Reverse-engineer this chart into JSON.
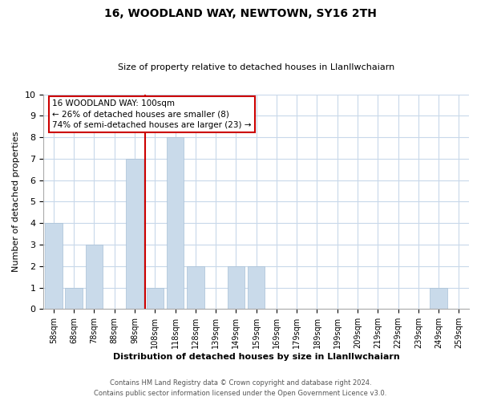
{
  "title": "16, WOODLAND WAY, NEWTOWN, SY16 2TH",
  "subtitle": "Size of property relative to detached houses in Llanllwchaiarn",
  "bar_labels": [
    "58sqm",
    "68sqm",
    "78sqm",
    "88sqm",
    "98sqm",
    "108sqm",
    "118sqm",
    "128sqm",
    "139sqm",
    "149sqm",
    "159sqm",
    "169sqm",
    "179sqm",
    "189sqm",
    "199sqm",
    "209sqm",
    "219sqm",
    "229sqm",
    "239sqm",
    "249sqm",
    "259sqm"
  ],
  "bar_values": [
    4,
    1,
    3,
    0,
    7,
    1,
    8,
    2,
    0,
    2,
    2,
    0,
    0,
    0,
    0,
    0,
    0,
    0,
    0,
    1,
    0
  ],
  "bar_color": "#c9daea",
  "bar_edge_color": "#a8c0d6",
  "reference_line_x": 4.5,
  "reference_line_color": "#cc0000",
  "annotation_title": "16 WOODLAND WAY: 100sqm",
  "annotation_line1": "← 26% of detached houses are smaller (8)",
  "annotation_line2": "74% of semi-detached houses are larger (23) →",
  "annotation_box_color": "#ffffff",
  "annotation_box_edge": "#cc0000",
  "xlabel": "Distribution of detached houses by size in Llanllwchaiarn",
  "ylabel": "Number of detached properties",
  "ylim": [
    0,
    10
  ],
  "yticks": [
    0,
    1,
    2,
    3,
    4,
    5,
    6,
    7,
    8,
    9,
    10
  ],
  "footnote1": "Contains HM Land Registry data © Crown copyright and database right 2024.",
  "footnote2": "Contains public sector information licensed under the Open Government Licence v3.0.",
  "bg_color": "#ffffff",
  "grid_color": "#c8d8ea",
  "title_fontsize": 10,
  "subtitle_fontsize": 8
}
